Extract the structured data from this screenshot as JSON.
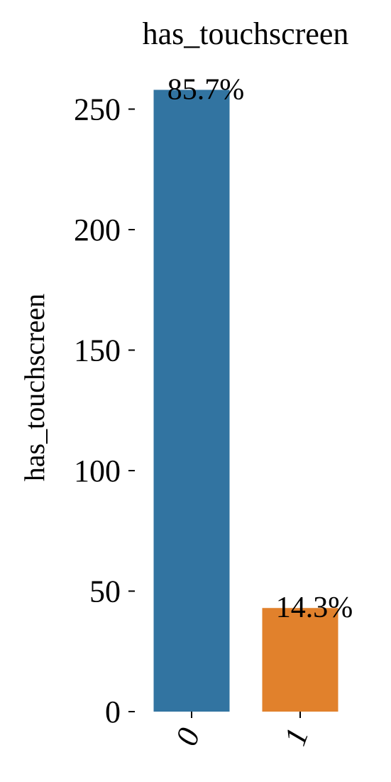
{
  "chart_data": {
    "type": "bar",
    "title": "has_touchscreen",
    "xlabel": "",
    "ylabel": "has_touchscreen",
    "categories": [
      "0",
      "1"
    ],
    "values": [
      258,
      43
    ],
    "data_labels": [
      "85.7%",
      "14.3%"
    ],
    "colors": [
      "#3274a1",
      "#e1812c"
    ],
    "ylim": [
      0,
      265
    ],
    "yticks": [
      0,
      50,
      100,
      150,
      200,
      250
    ],
    "grid": false,
    "legend": "none",
    "xtick_rotation": 70
  }
}
